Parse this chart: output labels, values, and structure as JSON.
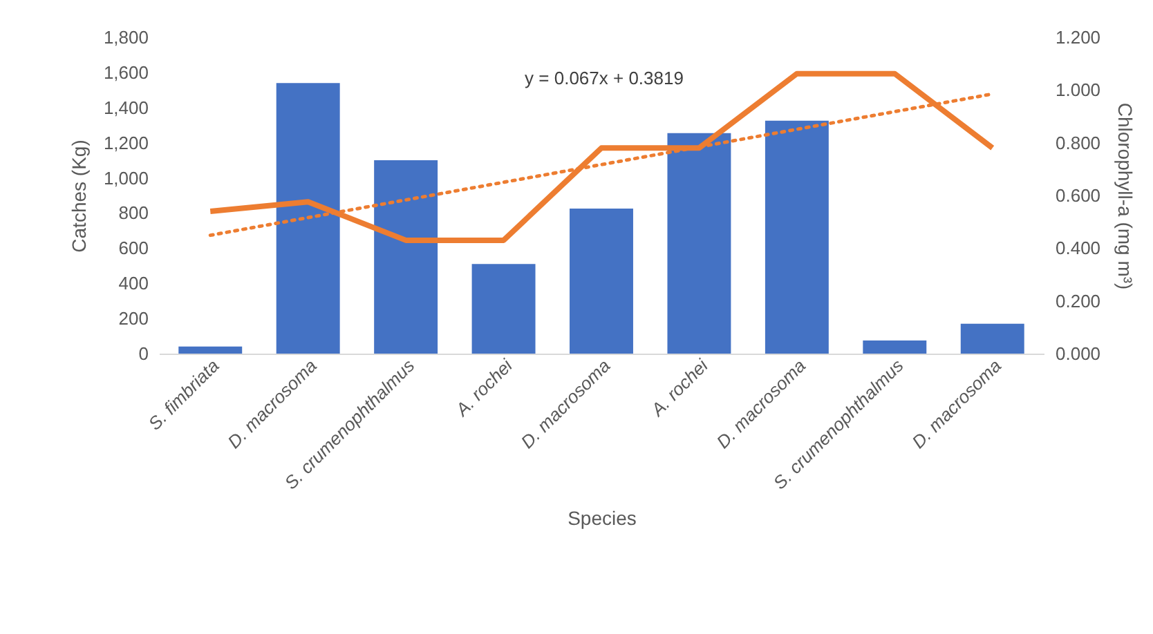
{
  "chart_data": {
    "type": "bar",
    "xlabel": "Species",
    "ylabel": "Catches (Kg)",
    "y2label": "Chlorophyll-a (mg m³)",
    "categories": [
      "S. fimbriata",
      "D. macrosoma",
      "S. crumenophthalmus",
      "A. rochei",
      "D. macrosoma",
      "A. rochei",
      "D. macrosoma",
      "S. crumenophthalmus",
      "D. macrosoma"
    ],
    "series": [
      {
        "color": "#4472c4",
        "values": [
          40,
          1540,
          1100,
          510,
          825,
          1255,
          1325,
          75,
          170
        ]
      },
      {
        "type": "line",
        "axis": "y2",
        "color": "#ed7d31",
        "line_style": "solid",
        "values": [
          0.54,
          0.576,
          0.43,
          0.43,
          0.78,
          0.78,
          1.062,
          1.062,
          0.78
        ]
      },
      {
        "type": "line",
        "axis": "y2",
        "color": "#ed7d31",
        "line_style": "dotted",
        "values": [
          0.449,
          0.516,
          0.583,
          0.65,
          0.717,
          0.784,
          0.851,
          0.918,
          0.985
        ]
      }
    ],
    "ylim": [
      0,
      1800
    ],
    "yticks": [
      0,
      200,
      400,
      600,
      800,
      {
        "value": 1000,
        "label": "1,000"
      },
      {
        "value": 1200,
        "label": "1,200"
      },
      {
        "value": 1400,
        "label": "1,400"
      },
      {
        "value": 1600,
        "label": "1,600"
      },
      {
        "value": 1800,
        "label": "1,800"
      }
    ],
    "y2lim": [
      0,
      1.2
    ],
    "y2ticks": [
      {
        "value": 0,
        "label": "0.000"
      },
      {
        "value": 0.2,
        "label": "0.200"
      },
      {
        "value": 0.4,
        "label": "0.400"
      },
      {
        "value": 0.6,
        "label": "0.600"
      },
      {
        "value": 0.8,
        "label": "0.800"
      },
      {
        "value": 1,
        "label": "1.000"
      },
      {
        "value": 1.2,
        "label": "1.200"
      }
    ],
    "annotations": [
      "y = 0.067x + 0.3819"
    ]
  }
}
